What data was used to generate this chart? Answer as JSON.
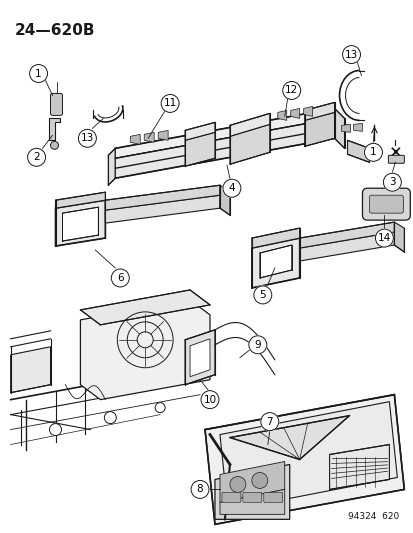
{
  "title": "24—620B",
  "part_number": "94324  620",
  "bg_color": "#ffffff",
  "line_color": "#1a1a1a",
  "fig_width": 4.14,
  "fig_height": 5.33,
  "dpi": 100,
  "gray_fill": "#d0d0d0",
  "light_gray": "#e8e8e8",
  "mid_gray": "#b0b0b0"
}
